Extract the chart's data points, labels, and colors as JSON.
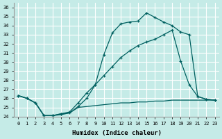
{
  "xlabel": "Humidex (Indice chaleur)",
  "xlim": [
    -0.5,
    23.5
  ],
  "ylim": [
    24,
    36.5
  ],
  "yticks": [
    24,
    25,
    26,
    27,
    28,
    29,
    30,
    31,
    32,
    33,
    34,
    35,
    36
  ],
  "xticks": [
    0,
    1,
    2,
    3,
    4,
    5,
    6,
    7,
    8,
    9,
    10,
    11,
    12,
    13,
    14,
    15,
    16,
    17,
    18,
    19,
    20,
    21,
    22,
    23
  ],
  "bg_color": "#c5ebe7",
  "grid_color": "#ffffff",
  "line_color": "#006060",
  "line1_x": [
    0,
    1,
    2,
    3,
    4,
    5,
    6,
    7,
    8,
    9,
    10,
    11,
    12,
    13,
    14,
    15,
    16,
    17,
    18,
    19,
    20,
    21,
    22,
    23
  ],
  "line1_y": [
    26.3,
    26.0,
    25.5,
    24.1,
    24.1,
    24.3,
    24.4,
    25.1,
    26.0,
    27.5,
    30.8,
    33.2,
    34.2,
    34.4,
    34.5,
    35.4,
    34.9,
    34.4,
    34.0,
    33.3,
    33.0,
    26.2,
    25.9,
    25.8
  ],
  "line2_x": [
    0,
    1,
    2,
    3,
    4,
    5,
    6,
    7,
    8,
    9,
    10,
    11,
    12,
    13,
    14,
    15,
    16,
    17,
    18,
    19,
    20,
    21,
    22,
    23
  ],
  "line2_y": [
    26.3,
    26.0,
    25.5,
    24.1,
    24.1,
    24.3,
    24.5,
    25.5,
    26.6,
    27.5,
    28.5,
    29.5,
    30.5,
    31.2,
    31.8,
    32.2,
    32.5,
    33.0,
    33.5,
    30.1,
    27.5,
    26.2,
    25.9,
    25.8
  ],
  "line3_x": [
    0,
    1,
    2,
    3,
    4,
    5,
    6,
    7,
    8,
    9,
    10,
    11,
    12,
    13,
    14,
    15,
    16,
    17,
    18,
    19,
    20,
    21,
    22,
    23
  ],
  "line3_y": [
    26.3,
    26.0,
    25.5,
    24.1,
    24.1,
    24.2,
    24.4,
    25.0,
    25.1,
    25.2,
    25.3,
    25.4,
    25.5,
    25.5,
    25.6,
    25.6,
    25.7,
    25.7,
    25.8,
    25.8,
    25.8,
    25.8,
    25.8,
    25.8
  ]
}
